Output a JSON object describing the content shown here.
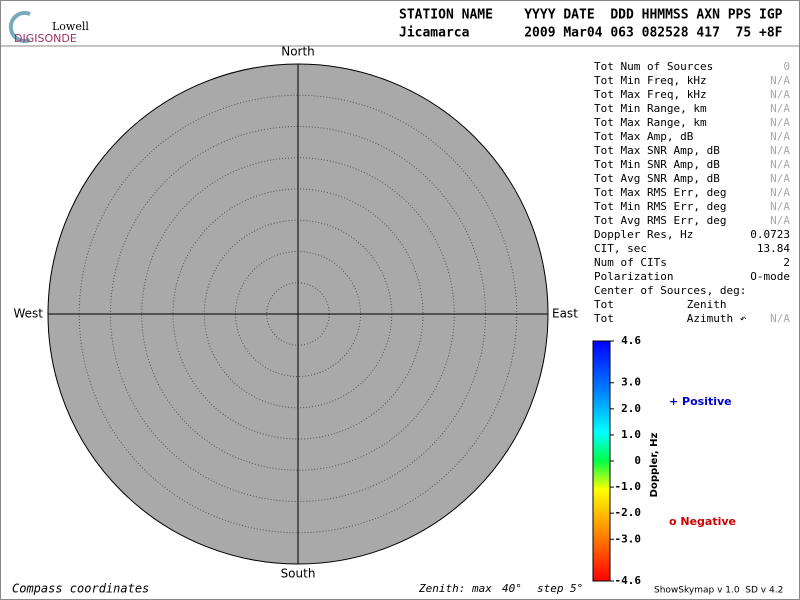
{
  "logo": {
    "top": "Lowell",
    "bottom": "DIGISONDE"
  },
  "header": {
    "line1": "STATION NAME    YYYY DATE  DDD HHMMSS AXN PPS IGP",
    "line2": "Jicamarca       2009 Mar04 063 082528 417  75 +8F"
  },
  "compass": {
    "north": "North",
    "south": "South",
    "east": "East",
    "west": "West"
  },
  "zenith": {
    "prefix": "Zenith: max",
    "max": {
      "value": 40,
      "label": "40°"
    },
    "step_text": "step",
    "step": {
      "value": 5,
      "label": "5°"
    }
  },
  "stats": [
    {
      "label": "Tot Num of Sources",
      "value": "0",
      "color": "#aaaaaa"
    },
    {
      "label": "Tot Min Freq, kHz",
      "value": "N/A",
      "color": "#aaaaaa"
    },
    {
      "label": "Tot Max Freq, kHz",
      "value": "N/A",
      "color": "#aaaaaa"
    },
    {
      "label": "Tot Min Range, km",
      "value": "N/A",
      "color": "#aaaaaa"
    },
    {
      "label": "Tot Max Range, km",
      "value": "N/A",
      "color": "#aaaaaa"
    },
    {
      "label": "Tot Max Amp, dB",
      "value": "N/A",
      "color": "#aaaaaa"
    },
    {
      "label": "Tot Max SNR Amp, dB",
      "value": "N/A",
      "color": "#aaaaaa"
    },
    {
      "label": "Tot Min SNR Amp, dB",
      "value": "N/A",
      "color": "#aaaaaa"
    },
    {
      "label": "Tot Avg SNR Amp, dB",
      "value": "N/A",
      "color": "#aaaaaa"
    },
    {
      "label": "Tot Max RMS Err, deg",
      "value": "N/A",
      "color": "#aaaaaa"
    },
    {
      "label": "Tot Min RMS Err, deg",
      "value": "N/A",
      "color": "#aaaaaa"
    },
    {
      "label": "Tot Avg RMS Err, deg",
      "value": "N/A",
      "color": "#aaaaaa"
    },
    {
      "label": "Doppler Res, Hz",
      "value": "0.0723",
      "color": "#000000"
    },
    {
      "label": "CIT, sec",
      "value": "13.84",
      "color": "#000000"
    },
    {
      "label": "Num of CITs",
      "value": "2",
      "color": "#000000"
    },
    {
      "label": "Polarization",
      "value": "O-mode",
      "color": "#000000"
    },
    {
      "label": "Center of Sources, deg:"
    },
    {
      "label": "Tot           Zenith"
    },
    {
      "label": "Tot           Azimuth ↶",
      "value": "N/A",
      "color": "#aaaaaa"
    }
  ],
  "colorbar": {
    "label": "Doppler, Hz",
    "lim": [
      -4.6,
      4.6
    ],
    "ticks": [
      4.6,
      {
        "value": 3,
        "label": "3.0"
      },
      {
        "value": 2,
        "label": "2.0"
      },
      {
        "value": 1,
        "label": "1.0"
      },
      0,
      {
        "value": -1,
        "label": "-1.0"
      },
      {
        "value": -2,
        "label": "-2.0"
      },
      {
        "value": -3,
        "label": "-3.0"
      },
      -4.6
    ]
  },
  "legend": {
    "positive": "+ Positive",
    "positive_color": "#0000cc",
    "negative": "o Negative",
    "negative_color": "#cc0000"
  },
  "footer": {
    "left": "Compass coordinates",
    "right": "ShowSkymap v 1.0  SD v 4.2"
  }
}
